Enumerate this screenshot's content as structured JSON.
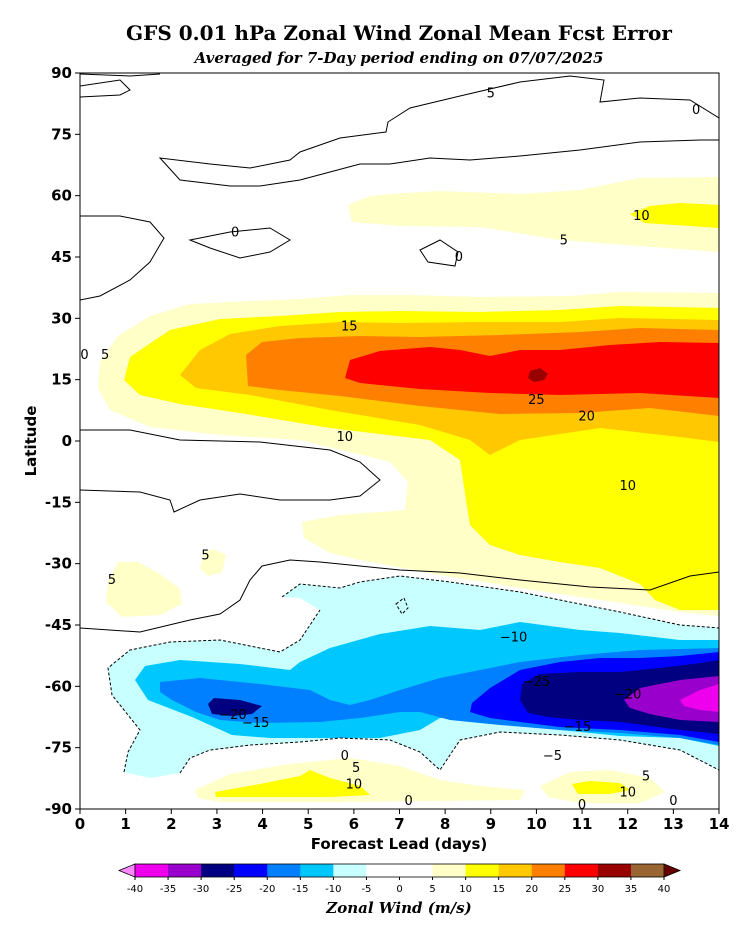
{
  "chart_data": {
    "type": "contour",
    "title": "GFS 0.01 hPa Zonal Wind Zonal Mean Fcst Error",
    "subtitle": "Averaged for 7-Day period ending on 07/07/2025",
    "xlabel": "Forecast Lead (days)",
    "ylabel": "Latitude",
    "xlim": [
      0,
      14
    ],
    "ylim": [
      -90,
      90
    ],
    "x_ticks": [
      "0",
      "1",
      "2",
      "3",
      "4",
      "5",
      "6",
      "7",
      "8",
      "9",
      "10",
      "11",
      "12",
      "13",
      "14"
    ],
    "y_ticks": [
      "90",
      "75",
      "60",
      "45",
      "30",
      "15",
      "0",
      "-15",
      "-30",
      "-45",
      "-60",
      "-75",
      "-90"
    ],
    "colorbar": {
      "label": "Zonal Wind (m/s)",
      "levels": [
        -40,
        -35,
        -30,
        -25,
        -20,
        -15,
        -10,
        -5,
        0,
        5,
        10,
        15,
        20,
        25,
        30,
        35,
        40
      ],
      "tick_labels": [
        "-40",
        "-35",
        "-30",
        "-25",
        "-20",
        "-15",
        "-10",
        "-5",
        "0",
        "5",
        "10",
        "15",
        "20",
        "25",
        "30",
        "35",
        "40"
      ],
      "colors": [
        "#ee00ee",
        "#9a00cc",
        "#000080",
        "#0000ff",
        "#0080ff",
        "#00c8ff",
        "#c8ffff",
        "#ffffff",
        "#ffffff",
        "#ffffc8",
        "#ffff00",
        "#ffc800",
        "#ff8000",
        "#ff0000",
        "#990000",
        "#996633"
      ],
      "extend_low_color": "#ff88ff",
      "extend_high_color": "#660000"
    },
    "contour_labels": [
      {
        "text": "5",
        "x": 9.0,
        "y": 85
      },
      {
        "text": "0",
        "x": 13.5,
        "y": 81
      },
      {
        "text": "10",
        "x": 12.3,
        "y": 55
      },
      {
        "text": "5",
        "x": 10.6,
        "y": 49
      },
      {
        "text": "0",
        "x": 3.4,
        "y": 51
      },
      {
        "text": "0",
        "x": 8.3,
        "y": 45
      },
      {
        "text": "0",
        "x": 0.1,
        "y": 21
      },
      {
        "text": "5",
        "x": 0.55,
        "y": 21
      },
      {
        "text": "15",
        "x": 5.9,
        "y": 28
      },
      {
        "text": "25",
        "x": 10.0,
        "y": 10
      },
      {
        "text": "20",
        "x": 11.1,
        "y": 6
      },
      {
        "text": "10",
        "x": 5.8,
        "y": 1
      },
      {
        "text": "10",
        "x": 12.0,
        "y": -11
      },
      {
        "text": "5",
        "x": 2.75,
        "y": -28
      },
      {
        "text": "5",
        "x": 0.7,
        "y": -34
      },
      {
        "text": "−10",
        "x": 9.5,
        "y": -48
      },
      {
        "text": "−25",
        "x": 10.0,
        "y": -59
      },
      {
        "text": "−20",
        "x": 12.0,
        "y": -62
      },
      {
        "text": "−20",
        "x": 3.35,
        "y": -67
      },
      {
        "text": "−15",
        "x": 3.85,
        "y": -69
      },
      {
        "text": "−15",
        "x": 10.9,
        "y": -70
      },
      {
        "text": "−5",
        "x": 10.35,
        "y": -77
      },
      {
        "text": "0",
        "x": 5.8,
        "y": -77
      },
      {
        "text": "5",
        "x": 6.05,
        "y": -80
      },
      {
        "text": "10",
        "x": 6.0,
        "y": -84
      },
      {
        "text": "5",
        "x": 12.4,
        "y": -82
      },
      {
        "text": "10",
        "x": 12.0,
        "y": -86
      },
      {
        "text": "0",
        "x": 7.2,
        "y": -88
      },
      {
        "text": "0",
        "x": 11.0,
        "y": -89
      },
      {
        "text": "0",
        "x": 13.0,
        "y": -88
      }
    ]
  }
}
